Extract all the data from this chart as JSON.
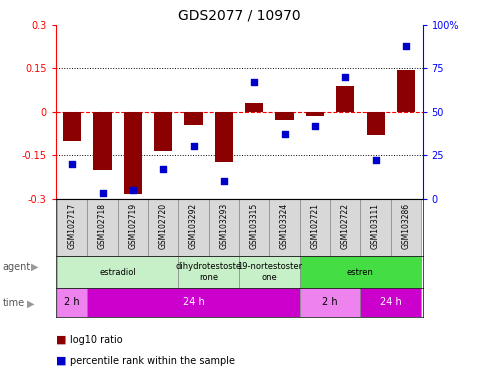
{
  "title": "GDS2077 / 10970",
  "samples": [
    "GSM102717",
    "GSM102718",
    "GSM102719",
    "GSM102720",
    "GSM103292",
    "GSM103293",
    "GSM103315",
    "GSM103324",
    "GSM102721",
    "GSM102722",
    "GSM103111",
    "GSM103286"
  ],
  "log10_ratio": [
    -0.1,
    -0.2,
    -0.285,
    -0.135,
    -0.045,
    -0.175,
    0.03,
    -0.03,
    -0.015,
    0.09,
    -0.08,
    0.145
  ],
  "percentile": [
    20,
    3,
    5,
    17,
    30,
    10,
    67,
    37,
    42,
    70,
    22,
    88
  ],
  "ylim": [
    -0.3,
    0.3
  ],
  "yticks": [
    -0.3,
    -0.15,
    0,
    0.15,
    0.3
  ],
  "ytick_labels": [
    "-0.3",
    "-0.15",
    "0",
    "0.15",
    "0.3"
  ],
  "right_yticks": [
    0,
    25,
    50,
    75,
    100
  ],
  "bar_color": "#8B0000",
  "dot_color": "#0000CD",
  "agent_groups": [
    {
      "label": "estradiol",
      "start": 0,
      "end": 4,
      "color": "#C8F0C8"
    },
    {
      "label": "dihydrotestoste\nrone",
      "start": 4,
      "end": 6,
      "color": "#C8F0C8"
    },
    {
      "label": "19-nortestoster\none",
      "start": 6,
      "end": 8,
      "color": "#C8F0C8"
    },
    {
      "label": "estren",
      "start": 8,
      "end": 12,
      "color": "#44DD44"
    }
  ],
  "time_groups": [
    {
      "label": "2 h",
      "start": 0,
      "end": 1,
      "color": "#EE82EE"
    },
    {
      "label": "24 h",
      "start": 1,
      "end": 8,
      "color": "#CC00CC"
    },
    {
      "label": "2 h",
      "start": 8,
      "end": 10,
      "color": "#EE82EE"
    },
    {
      "label": "24 h",
      "start": 10,
      "end": 12,
      "color": "#CC00CC"
    }
  ],
  "legend_red": "log10 ratio",
  "legend_blue": "percentile rank within the sample",
  "title_fontsize": 10,
  "axis_fontsize": 7,
  "sample_fontsize": 5.5
}
